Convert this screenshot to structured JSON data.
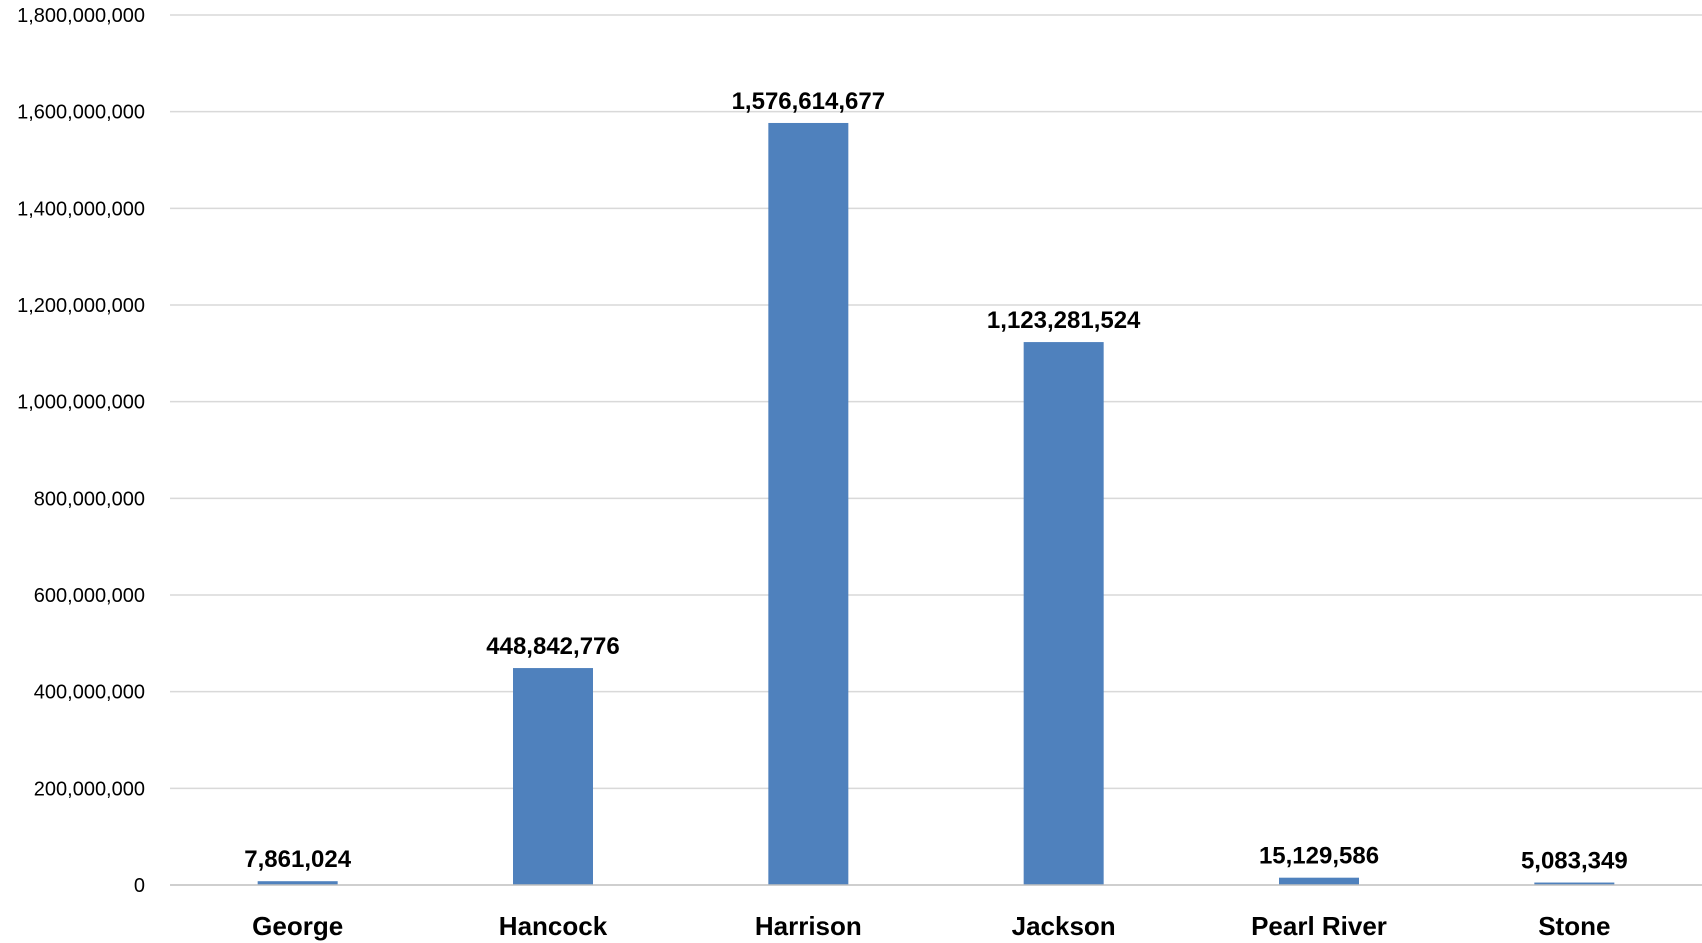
{
  "chart_data": {
    "type": "bar",
    "title": "",
    "xlabel": "",
    "ylabel": "",
    "categories": [
      "George",
      "Hancock",
      "Harrison",
      "Jackson",
      "Pearl River",
      "Stone"
    ],
    "values": [
      7861024,
      448842776,
      1576614677,
      1123281524,
      15129586,
      5083349
    ],
    "data_labels": [
      "7,861,024",
      "448,842,776",
      "1,576,614,677",
      "1,123,281,524",
      "15,129,586",
      "5,083,349"
    ],
    "ylim": [
      0,
      1800000000
    ],
    "y_ticks": [
      0,
      200000000,
      400000000,
      600000000,
      800000000,
      1000000000,
      1200000000,
      1400000000,
      1600000000,
      1800000000
    ],
    "y_tick_labels": [
      "0",
      "200,000,000",
      "400,000,000",
      "600,000,000",
      "800,000,000",
      "1,000,000,000",
      "1,200,000,000",
      "1,400,000,000",
      "1,600,000,000",
      "1,800,000,000"
    ],
    "grid": true,
    "legend": "none",
    "bar_color": "#4f81bd"
  }
}
